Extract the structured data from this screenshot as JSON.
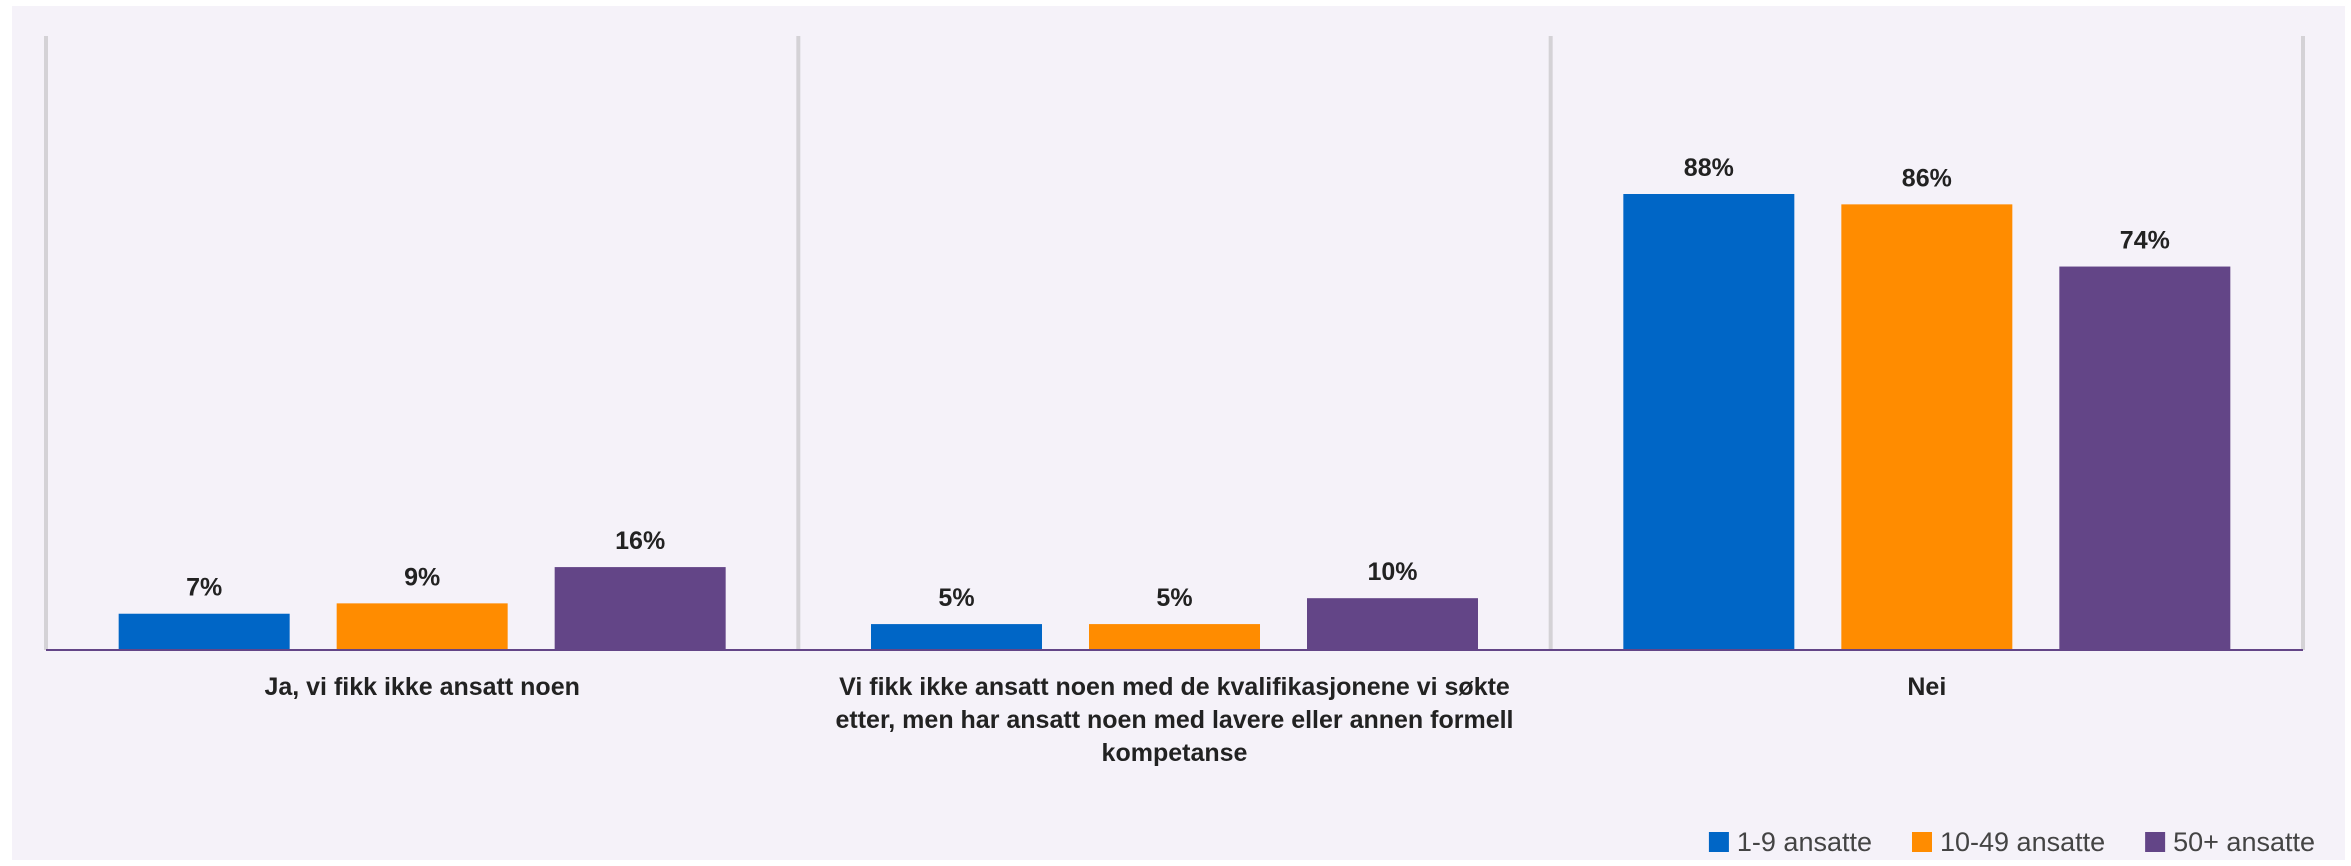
{
  "chart_data": {
    "type": "bar",
    "title": "",
    "xlabel": "",
    "ylabel": "",
    "ylim": [
      0,
      100
    ],
    "grid": false,
    "legend_position": "bottom-right",
    "categories": [
      [
        "Ja, vi fikk ikke ansatt noen"
      ],
      [
        "Vi fikk ikke ansatt noen med de kvalifikasjonene vi søkte",
        "etter, men har ansatt noen med lavere eller annen formell",
        "kompetanse"
      ],
      [
        "Nei"
      ]
    ],
    "series": [
      {
        "name": "1-9 ansatte",
        "color": "#0066c6",
        "values": [
          7,
          5,
          88
        ],
        "labels": [
          "7%",
          "5%",
          "88%"
        ]
      },
      {
        "name": "10-49 ansatte",
        "color": "#ff8c00",
        "values": [
          9,
          5,
          86
        ],
        "labels": [
          "9%",
          "5%",
          "86%"
        ]
      },
      {
        "name": "50+ ansatte",
        "color": "#634587",
        "values": [
          16,
          10,
          74
        ],
        "labels": [
          "16%",
          "10%",
          "74%"
        ]
      }
    ]
  }
}
